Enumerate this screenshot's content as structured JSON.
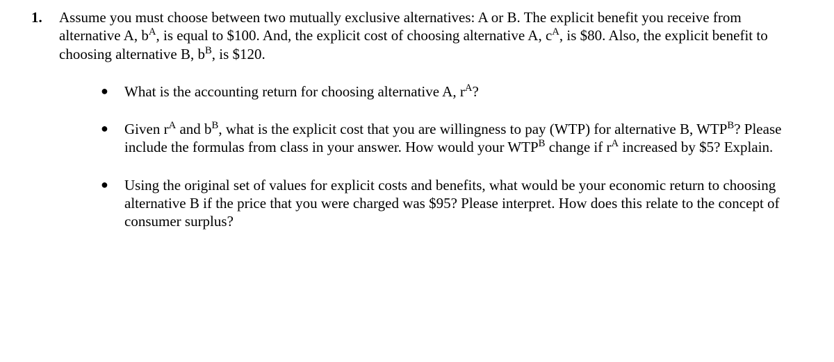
{
  "typography": {
    "font_family": "Times New Roman",
    "font_size_pt": 16,
    "color": "#000000",
    "background": "#ffffff"
  },
  "question": {
    "number": "1.",
    "intro_html": "Assume you must choose between two mutually exclusive alternatives: A or B.  The explicit benefit you receive from alternative A, b<sup>A</sup>, is equal to $100.  And, the explicit cost of choosing alternative A, c<sup>A</sup>, is $80.  Also, the explicit benefit to choosing alternative B, b<sup>B</sup>, is $120.",
    "bullets": [
      "What is the accounting return for choosing alternative A, r<sup>A</sup>?",
      "Given r<sup>A</sup> and b<sup>B</sup>, what is the explicit cost that you are willingness to pay (WTP) for alternative B, WTP<sup>B</sup>?  Please include the formulas from class in your answer.  How would your WTP<sup>B</sup> change if r<sup>A</sup> increased by $5?  Explain.",
      "Using the original set of values for explicit costs and benefits, what would be your economic return to choosing alternative B if the price that you were charged was $95?  Please interpret.  How does this relate to the concept of consumer surplus?"
    ]
  }
}
